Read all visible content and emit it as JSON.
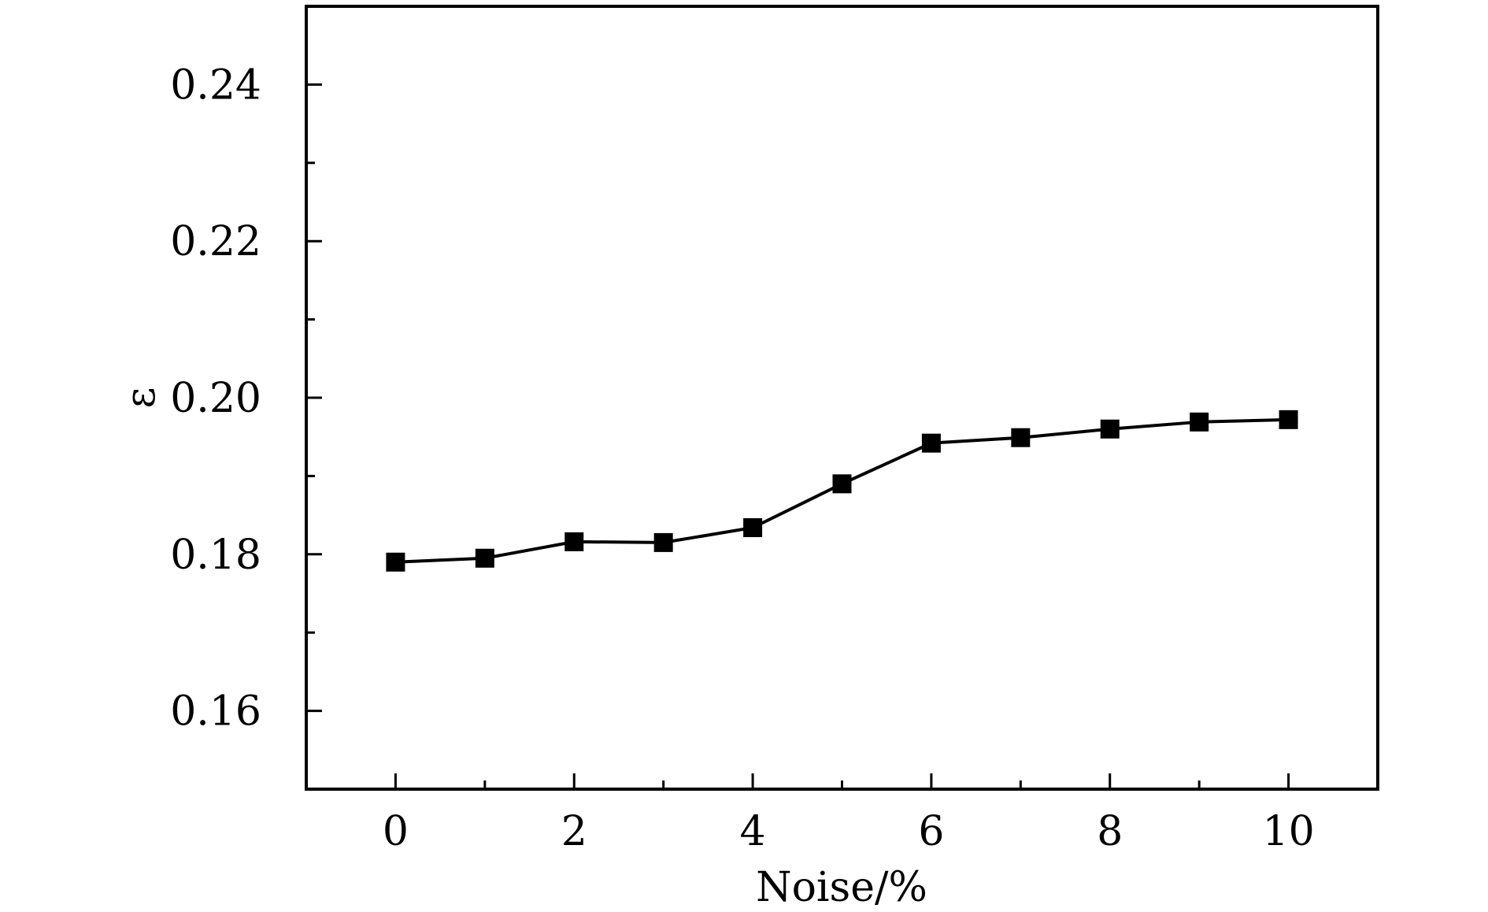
{
  "chart_data": {
    "type": "line",
    "title": "",
    "xlabel": "Noise/%",
    "ylabel": "ε",
    "xlim": [
      -1,
      11
    ],
    "ylim": [
      0.15,
      0.25
    ],
    "x_ticks": [
      0,
      2,
      4,
      6,
      8,
      10
    ],
    "x_tick_labels": [
      "0",
      "2",
      "4",
      "6",
      "8",
      "10"
    ],
    "x_minor_ticks": [
      1,
      3,
      5,
      7,
      9
    ],
    "y_ticks": [
      0.16,
      0.18,
      0.2,
      0.22,
      0.24
    ],
    "y_tick_labels": [
      "0.16",
      "0.18",
      "0.20",
      "0.22",
      "0.24"
    ],
    "y_minor_ticks": [
      0.17,
      0.19,
      0.21,
      0.23
    ],
    "grid": false,
    "legend": "none",
    "series": [
      {
        "marker": "square",
        "color": "#000000",
        "x": [
          0,
          1,
          2,
          3,
          4,
          5,
          6,
          7,
          8,
          9,
          10
        ],
        "y": [
          0.179,
          0.1795,
          0.1816,
          0.1815,
          0.1834,
          0.189,
          0.1942,
          0.1949,
          0.196,
          0.1969,
          0.1972
        ]
      }
    ]
  }
}
